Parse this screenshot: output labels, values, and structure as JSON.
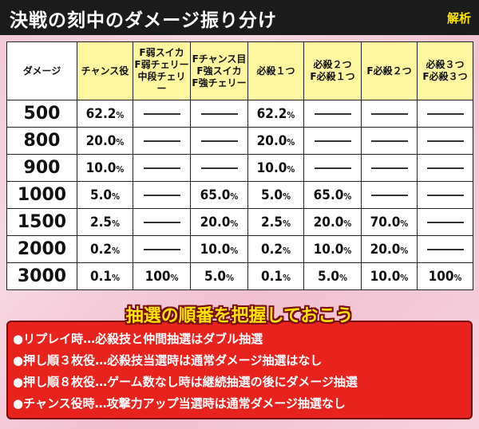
{
  "header": {
    "title": "決戦の刻中のダメージ振り分け",
    "tag": "解析"
  },
  "table": {
    "columns": [
      [
        "ダメージ"
      ],
      [
        "チャンス役"
      ],
      [
        "F弱スイカ",
        "F弱チェリー",
        "中段チェリー"
      ],
      [
        "Fチャンス目",
        "F強スイカ",
        "F強チェリー"
      ],
      [
        "必殺１つ"
      ],
      [
        "必殺２つ",
        "F必殺１つ"
      ],
      [
        "F必殺２つ"
      ],
      [
        "必殺３つ",
        "F必殺３つ"
      ]
    ],
    "rows": [
      {
        "damage": "500",
        "cells": [
          "62.2%",
          "—",
          "—",
          "62.2%",
          "—",
          "—",
          "—"
        ]
      },
      {
        "damage": "800",
        "cells": [
          "20.0%",
          "—",
          "—",
          "20.0%",
          "—",
          "—",
          "—"
        ]
      },
      {
        "damage": "900",
        "cells": [
          "10.0%",
          "—",
          "—",
          "10.0%",
          "—",
          "—",
          "—"
        ]
      },
      {
        "damage": "1000",
        "cells": [
          "5.0%",
          "—",
          "65.0%",
          "5.0%",
          "65.0%",
          "—",
          "—"
        ]
      },
      {
        "damage": "1500",
        "cells": [
          "2.5%",
          "—",
          "20.0%",
          "2.5%",
          "20.0%",
          "70.0%",
          "—"
        ]
      },
      {
        "damage": "2000",
        "cells": [
          "0.2%",
          "—",
          "10.0%",
          "0.2%",
          "10.0%",
          "20.0%",
          "—"
        ]
      },
      {
        "damage": "3000",
        "cells": [
          "0.1%",
          "100%",
          "5.0%",
          "0.1%",
          "5.0%",
          "10.0%",
          "100%"
        ]
      }
    ]
  },
  "notes": {
    "heading": "抽選の順番を把握しておこう",
    "items": [
      "●リプレイ時…必殺技と仲間抽選はダブル抽選",
      "●押し順３枚役…必殺技当選時は通常ダメージ抽選はなし",
      "●押し順８枚役…ゲーム数なし時は継続抽選の後にダメージ抽選",
      "●チャンス役時…攻撃力アップ当選時は通常ダメージ抽選なし"
    ]
  }
}
